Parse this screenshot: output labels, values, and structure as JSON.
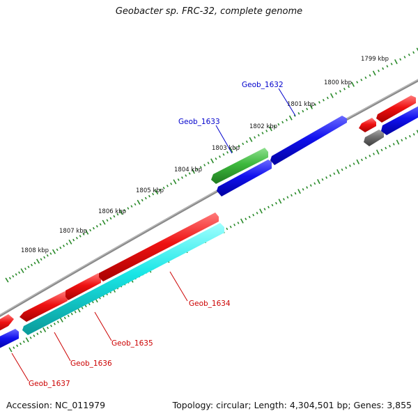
{
  "title": "Geobacter sp. FRC-32, complete genome",
  "footer": {
    "accession": "Accession: NC_011979",
    "summary": "Topology: circular; Length: 4,304,501 bp; Genes: 3,855"
  },
  "colors": {
    "backbone": "#8a8a8a",
    "tick": "#2a8a2a",
    "red": "#ee1111",
    "blue": "#1111ee",
    "green": "#3db83d",
    "cyan": "#19e6e6",
    "gray": "#6e6e6e",
    "label_red": "#cc0000",
    "label_blue": "#0000cc"
  },
  "kbp_labels": [
    "1799 kbp",
    "1800 kbp",
    "1801 kbp",
    "1802 kbp",
    "1803 kbp",
    "1804 kbp",
    "1805 kbp",
    "1806 kbp",
    "1807 kbp",
    "1808 kbp"
  ],
  "gene_labels": [
    {
      "name": "Geob_1632",
      "color": "blue"
    },
    {
      "name": "Geob_1633",
      "color": "blue"
    },
    {
      "name": "Geob_1634",
      "color": "red"
    },
    {
      "name": "Geob_1635",
      "color": "red"
    },
    {
      "name": "Geob_1636",
      "color": "red"
    },
    {
      "name": "Geob_1637",
      "color": "red"
    }
  ]
}
